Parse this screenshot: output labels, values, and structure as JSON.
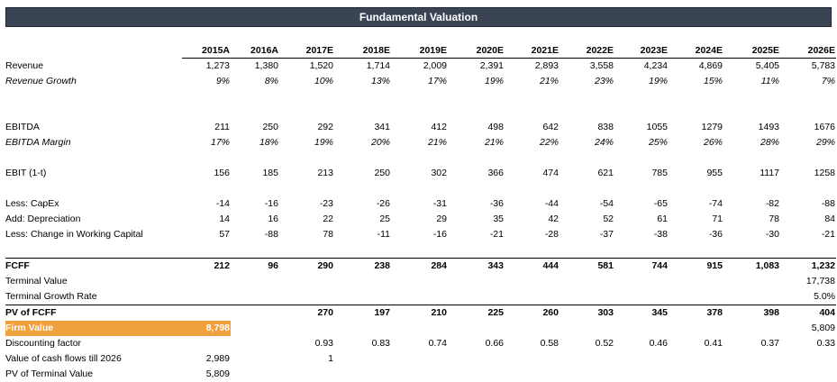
{
  "title": "Fundamental Valuation",
  "years": [
    "2015A",
    "2016A",
    "2017E",
    "2018E",
    "2019E",
    "2020E",
    "2021E",
    "2022E",
    "2023E",
    "2024E",
    "2025E",
    "2026E"
  ],
  "rows": {
    "revenue": {
      "label": "Revenue",
      "values": [
        "1,273",
        "1,380",
        "1,520",
        "1,714",
        "2,009",
        "2,391",
        "2,893",
        "3,558",
        "4,234",
        "4,869",
        "5,405",
        "5,783"
      ]
    },
    "revenue_growth": {
      "label": "Revenue Growth",
      "values": [
        "9%",
        "8%",
        "10%",
        "13%",
        "17%",
        "19%",
        "21%",
        "23%",
        "19%",
        "15%",
        "11%",
        "7%"
      ]
    },
    "ebitda": {
      "label": "EBITDA",
      "values": [
        "211",
        "250",
        "292",
        "341",
        "412",
        "498",
        "642",
        "838",
        "1055",
        "1279",
        "1493",
        "1676"
      ]
    },
    "ebitda_margin": {
      "label": "EBITDA Margin",
      "values": [
        "17%",
        "18%",
        "19%",
        "20%",
        "21%",
        "21%",
        "22%",
        "24%",
        "25%",
        "26%",
        "28%",
        "29%"
      ]
    },
    "ebit": {
      "label": "EBIT (1-t)",
      "values": [
        "156",
        "185",
        "213",
        "250",
        "302",
        "366",
        "474",
        "621",
        "785",
        "955",
        "1117",
        "1258"
      ]
    },
    "capex": {
      "label": "Less: CapEx",
      "values": [
        "-14",
        "-16",
        "-23",
        "-26",
        "-31",
        "-36",
        "-44",
        "-54",
        "-65",
        "-74",
        "-82",
        "-88"
      ]
    },
    "depreciation": {
      "label": "Add: Depreciation",
      "values": [
        "14",
        "16",
        "22",
        "25",
        "29",
        "35",
        "42",
        "52",
        "61",
        "71",
        "78",
        "84"
      ]
    },
    "working_capital": {
      "label": "Less: Change in Working Capital",
      "values": [
        "57",
        "-88",
        "78",
        "-11",
        "-16",
        "-21",
        "-28",
        "-37",
        "-38",
        "-36",
        "-30",
        "-21"
      ]
    },
    "fcff": {
      "label": "FCFF",
      "values": [
        "212",
        "96",
        "290",
        "238",
        "284",
        "343",
        "444",
        "581",
        "744",
        "915",
        "1,083",
        "1,232"
      ]
    },
    "terminal_value": {
      "label": "Terminal Value",
      "values": [
        "",
        "",
        "",
        "",
        "",
        "",
        "",
        "",
        "",
        "",
        "",
        "17,738"
      ]
    },
    "terminal_growth": {
      "label": "Terminal Growth Rate",
      "values": [
        "",
        "",
        "",
        "",
        "",
        "",
        "",
        "",
        "",
        "",
        "",
        "5.0%"
      ]
    },
    "pv_fcff": {
      "label": "PV of FCFF",
      "values": [
        "",
        "",
        "270",
        "197",
        "210",
        "225",
        "260",
        "303",
        "345",
        "378",
        "398",
        "404"
      ]
    },
    "firm_value": {
      "label": "Firm Value",
      "value": "8,798",
      "values": [
        "",
        "",
        "",
        "",
        "",
        "",
        "",
        "",
        "",
        "",
        "",
        "5,809"
      ]
    },
    "discounting": {
      "label": "Discounting factor",
      "values": [
        "",
        "",
        "0.93",
        "0.83",
        "0.74",
        "0.66",
        "0.58",
        "0.52",
        "0.46",
        "0.41",
        "0.37",
        "0.33"
      ]
    },
    "value_cf": {
      "label": "Value of cash flows till 2026",
      "values": [
        "2,989",
        "",
        "1",
        "",
        "",
        "",
        "",
        "",
        "",
        "",
        "",
        ""
      ]
    },
    "pv_terminal": {
      "label": "PV of Terminal Value",
      "values": [
        "5,809",
        "",
        "",
        "",
        "",
        "",
        "",
        "",
        "",
        "",
        "",
        ""
      ]
    }
  },
  "colors": {
    "banner": "#3b4455",
    "highlight": "#f0a03c"
  }
}
